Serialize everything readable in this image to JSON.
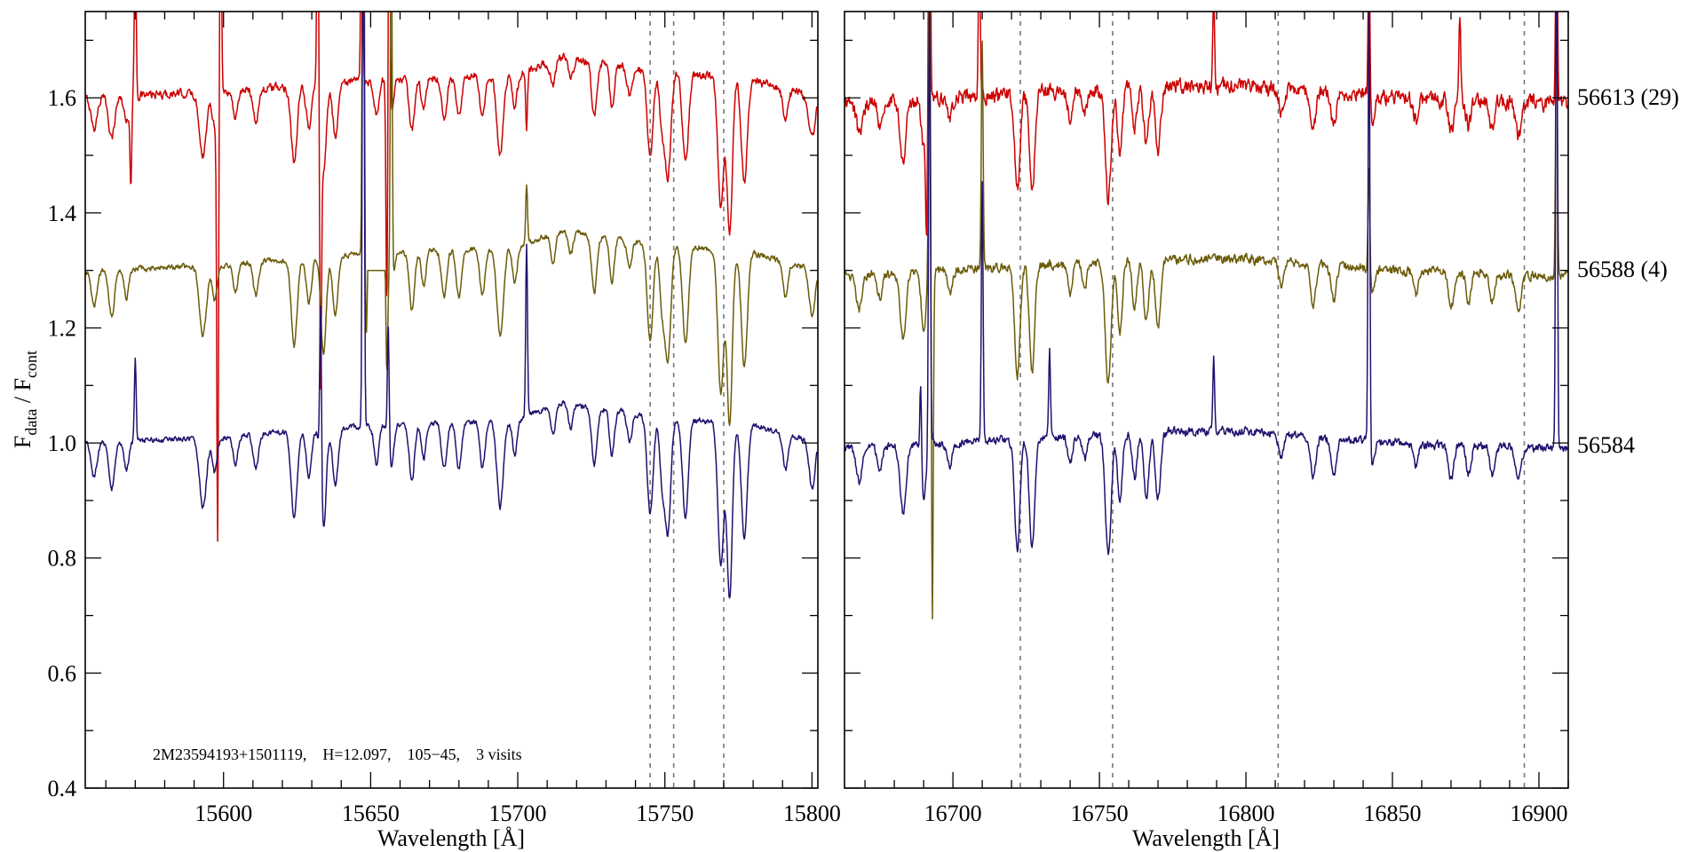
{
  "chart_data": {
    "type": "line",
    "ylabel": {
      "main": "F",
      "sub1": "data",
      "sep": " / F",
      "sub2": "cont"
    },
    "xlabel": "Wavelength [Å]",
    "ylim": [
      0.4,
      1.75
    ],
    "yticks": [
      0.4,
      0.6,
      0.8,
      1.0,
      1.2,
      1.4,
      1.6
    ],
    "yticklabels": [
      "0.4",
      "0.6",
      "0.8",
      "1.0",
      "1.2",
      "1.4",
      "1.6"
    ],
    "annotation": "2M23594193+1501119,    H=12.097,    105−45,    3 visits",
    "series": [
      {
        "name": "56613 (29)",
        "color": "#cc0000",
        "offset": 1.6,
        "noise": 0.012,
        "noise_right": 0.022,
        "depth_scale": 0.9
      },
      {
        "name": "56588 (4)",
        "color": "#6b5c0a",
        "offset": 1.3,
        "noise": 0.008,
        "noise_right": 0.014,
        "depth_scale": 1.0
      },
      {
        "name": "56584",
        "color": "#22106e",
        "offset": 1.0,
        "noise": 0.008,
        "noise_right": 0.012,
        "depth_scale": 1.0
      }
    ],
    "panels": [
      {
        "xlim": [
          15553,
          15802
        ],
        "xticks": [
          15600,
          15650,
          15700,
          15750,
          15800
        ],
        "xticklabels": [
          "15600",
          "15650",
          "15700",
          "15750",
          "15800"
        ],
        "dashed_lines": [
          15745,
          15753,
          15770
        ],
        "continuum": [
          [
            15553,
            0.0
          ],
          [
            15600,
            0.01
          ],
          [
            15650,
            0.03
          ],
          [
            15700,
            0.04
          ],
          [
            15715,
            0.07
          ],
          [
            15740,
            0.05
          ],
          [
            15780,
            0.03
          ],
          [
            15802,
            0.0
          ]
        ],
        "absorption_lines": [
          [
            15556,
            0.06,
            1.0
          ],
          [
            15562,
            0.08,
            1.0
          ],
          [
            15567,
            0.05,
            0.8
          ],
          [
            15593,
            0.12,
            1.2
          ],
          [
            15597,
            0.06,
            0.8
          ],
          [
            15604,
            0.05,
            0.8
          ],
          [
            15611,
            0.06,
            0.9
          ],
          [
            15624,
            0.15,
            1.0
          ],
          [
            15629,
            0.08,
            0.9
          ],
          [
            15634,
            0.17,
            0.9
          ],
          [
            15638,
            0.1,
            0.9
          ],
          [
            15652,
            0.07,
            0.8
          ],
          [
            15657,
            0.07,
            0.8
          ],
          [
            15664,
            0.1,
            0.9
          ],
          [
            15668,
            0.06,
            0.8
          ],
          [
            15675,
            0.08,
            0.9
          ],
          [
            15680,
            0.08,
            0.9
          ],
          [
            15688,
            0.08,
            0.9
          ],
          [
            15694,
            0.15,
            1.1
          ],
          [
            15699,
            0.06,
            0.8
          ],
          [
            15712,
            0.05,
            0.8
          ],
          [
            15718,
            0.04,
            0.8
          ],
          [
            15726,
            0.1,
            0.9
          ],
          [
            15732,
            0.08,
            0.8
          ],
          [
            15738,
            0.05,
            0.8
          ],
          [
            15745,
            0.17,
            1.0
          ],
          [
            15749,
            0.1,
            0.8
          ],
          [
            15751,
            0.2,
            1.0
          ],
          [
            15757,
            0.17,
            1.0
          ],
          [
            15769,
            0.25,
            1.0
          ],
          [
            15772,
            0.3,
            0.9
          ],
          [
            15777,
            0.2,
            1.0
          ],
          [
            15791,
            0.06,
            0.9
          ],
          [
            15800,
            0.08,
            1.0
          ]
        ],
        "spikes": [
          {
            "series": 2,
            "x": 15570,
            "amp": 0.14
          },
          {
            "series": 2,
            "x": 15633,
            "amp": 0.3
          },
          {
            "series": 2,
            "x": 15647.5,
            "amp": 1.2
          },
          {
            "series": 2,
            "x": 15656,
            "amp": 0.2
          },
          {
            "series": 2,
            "x": 15703,
            "amp": 0.3
          },
          {
            "series": 0,
            "x": 15570,
            "amp": 0.3
          },
          {
            "series": 0,
            "x": 15568.5,
            "amp": -0.15
          },
          {
            "series": 0,
            "x": 15598,
            "amp": -0.75
          },
          {
            "series": 0,
            "x": 15599,
            "amp": 0.4
          },
          {
            "series": 0,
            "x": 15632,
            "amp": 0.4
          },
          {
            "series": 0,
            "x": 15633,
            "amp": -0.45
          },
          {
            "series": 0,
            "x": 15647,
            "amp": 0.5
          },
          {
            "series": 0,
            "x": 15655.5,
            "amp": -0.4
          },
          {
            "series": 0,
            "x": 15656.3,
            "amp": 0.5
          },
          {
            "series": 0,
            "x": 15703,
            "amp": -0.1
          },
          {
            "series": 1,
            "x": 15647.5,
            "amp": 1.0
          },
          {
            "series": 1,
            "x": 15648.5,
            "amp": -0.15
          },
          {
            "series": 1,
            "x": 15655.5,
            "amp": -0.2
          },
          {
            "series": 1,
            "x": 15657,
            "amp": 0.7
          },
          {
            "series": 1,
            "x": 15703,
            "amp": 0.1
          }
        ],
        "flat_segments": [
          {
            "series": 1,
            "from": 15649,
            "to": 15655,
            "value": 1.3
          }
        ]
      },
      {
        "xlim": [
          16663,
          16910
        ],
        "xticks": [
          16700,
          16750,
          16800,
          16850,
          16900
        ],
        "xticklabels": [
          "16700",
          "16750",
          "16800",
          "16850",
          "16900"
        ],
        "dashed_lines": [
          16723,
          16754.5,
          16811,
          16895
        ],
        "continuum": [
          [
            16663,
            -0.01
          ],
          [
            16700,
            0.0
          ],
          [
            16770,
            0.02
          ],
          [
            16800,
            0.02
          ],
          [
            16850,
            0.0
          ],
          [
            16910,
            -0.01
          ]
        ],
        "absorption_lines": [
          [
            16668,
            0.06,
            1.0
          ],
          [
            16675,
            0.04,
            0.8
          ],
          [
            16683,
            0.12,
            1.0
          ],
          [
            16690,
            0.1,
            0.8
          ],
          [
            16699,
            0.04,
            0.8
          ],
          [
            16722,
            0.19,
            0.9
          ],
          [
            16727,
            0.19,
            0.9
          ],
          [
            16740,
            0.05,
            0.8
          ],
          [
            16745,
            0.04,
            0.8
          ],
          [
            16753,
            0.21,
            1.0
          ],
          [
            16757,
            0.12,
            0.8
          ],
          [
            16762,
            0.08,
            0.8
          ],
          [
            16766,
            0.11,
            0.9
          ],
          [
            16770,
            0.12,
            0.9
          ],
          [
            16812,
            0.04,
            0.8
          ],
          [
            16823,
            0.07,
            0.9
          ],
          [
            16830,
            0.06,
            0.9
          ],
          [
            16843,
            0.04,
            0.8
          ],
          [
            16858,
            0.04,
            0.8
          ],
          [
            16870,
            0.06,
            0.9
          ],
          [
            16876,
            0.05,
            0.8
          ],
          [
            16884,
            0.05,
            0.8
          ],
          [
            16893,
            0.06,
            1.0
          ]
        ],
        "spikes": [
          {
            "series": 0,
            "x": 16692,
            "amp": 0.6
          },
          {
            "series": 0,
            "x": 16691,
            "amp": -0.2
          },
          {
            "series": 0,
            "x": 16709,
            "amp": 0.3
          },
          {
            "series": 0,
            "x": 16789,
            "amp": 0.15
          },
          {
            "series": 0,
            "x": 16842,
            "amp": 0.3
          },
          {
            "series": 0,
            "x": 16873,
            "amp": 0.15
          },
          {
            "series": 0,
            "x": 16906,
            "amp": 0.4
          },
          {
            "series": 1,
            "x": 16692,
            "amp": 0.6
          },
          {
            "series": 1,
            "x": 16693,
            "amp": -0.6
          },
          {
            "series": 1,
            "x": 16710,
            "amp": 0.4
          },
          {
            "series": 1,
            "x": 16842,
            "amp": 0.2
          },
          {
            "series": 1,
            "x": 16906,
            "amp": 0.5
          },
          {
            "series": 2,
            "x": 16689,
            "amp": 0.15
          },
          {
            "series": 2,
            "x": 16692,
            "amp": 0.8
          },
          {
            "series": 2,
            "x": 16710,
            "amp": 0.45
          },
          {
            "series": 2,
            "x": 16733,
            "amp": 0.15
          },
          {
            "series": 2,
            "x": 16789,
            "amp": 0.13
          },
          {
            "series": 2,
            "x": 16842,
            "amp": 0.8
          },
          {
            "series": 2,
            "x": 16906,
            "amp": 0.9
          }
        ],
        "flat_segments": []
      }
    ]
  }
}
